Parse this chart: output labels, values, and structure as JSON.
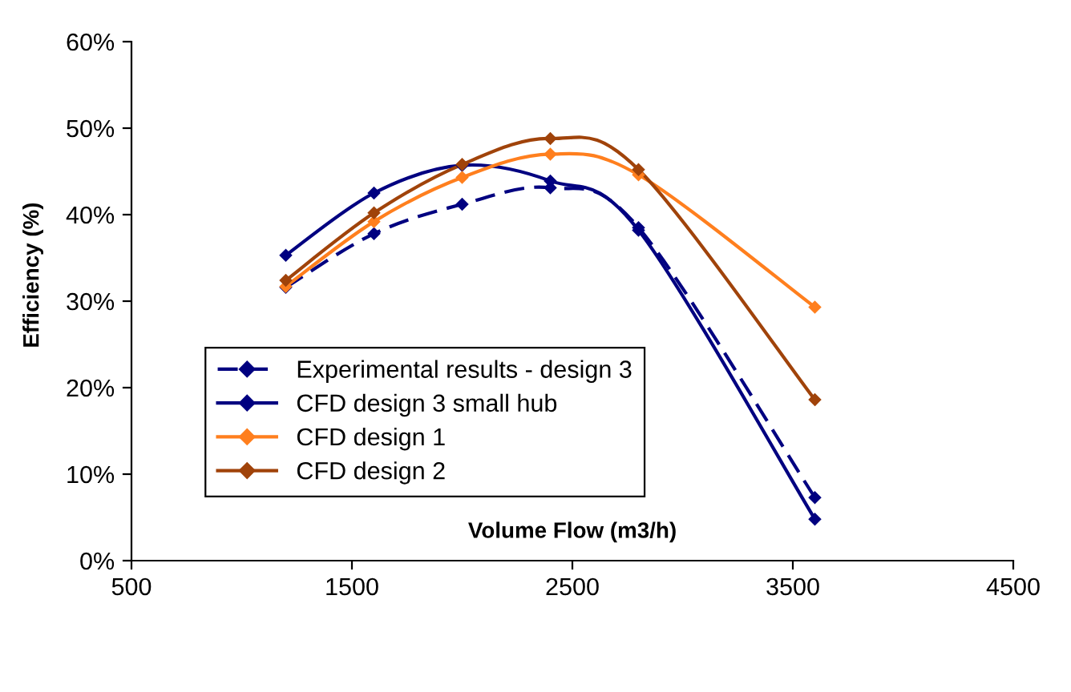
{
  "chart_data": {
    "type": "line",
    "xlabel": "Volume Flow (m3/h)",
    "ylabel": "Efficiency (%)",
    "x": [
      1200,
      1600,
      2000,
      2400,
      2800,
      3600
    ],
    "series": [
      {
        "name": "Experimental results - design 3",
        "color": "#000080",
        "line_style": "dashed",
        "values": [
          31.6,
          37.8,
          41.2,
          43.1,
          38.5,
          7.3
        ]
      },
      {
        "name": "CFD design 3 small hub",
        "color": "#000080",
        "line_style": "solid",
        "values": [
          35.3,
          42.5,
          45.7,
          43.9,
          38.2,
          4.8
        ]
      },
      {
        "name": "CFD design 1",
        "color": "#ff7f1e",
        "line_style": "solid",
        "values": [
          31.7,
          39.2,
          44.3,
          47.0,
          44.6,
          29.3
        ]
      },
      {
        "name": "CFD design 2",
        "color": "#a0430a",
        "line_style": "solid",
        "values": [
          32.4,
          40.2,
          45.8,
          48.8,
          45.2,
          18.6
        ]
      }
    ],
    "marker": "diamond",
    "xlim": [
      500,
      4500
    ],
    "xticks": [
      500,
      1500,
      2500,
      3500,
      4500
    ],
    "ylim": [
      0,
      60
    ],
    "yticks": [
      {
        "value": 0,
        "label": "0%"
      },
      {
        "value": 10,
        "label": "10%"
      },
      {
        "value": 20,
        "label": "20%"
      },
      {
        "value": 30,
        "label": "30%"
      },
      {
        "value": 40,
        "label": "40%"
      },
      {
        "value": 50,
        "label": "50%"
      },
      {
        "value": 60,
        "label": "60%"
      }
    ],
    "grid": false,
    "legend": "left"
  }
}
